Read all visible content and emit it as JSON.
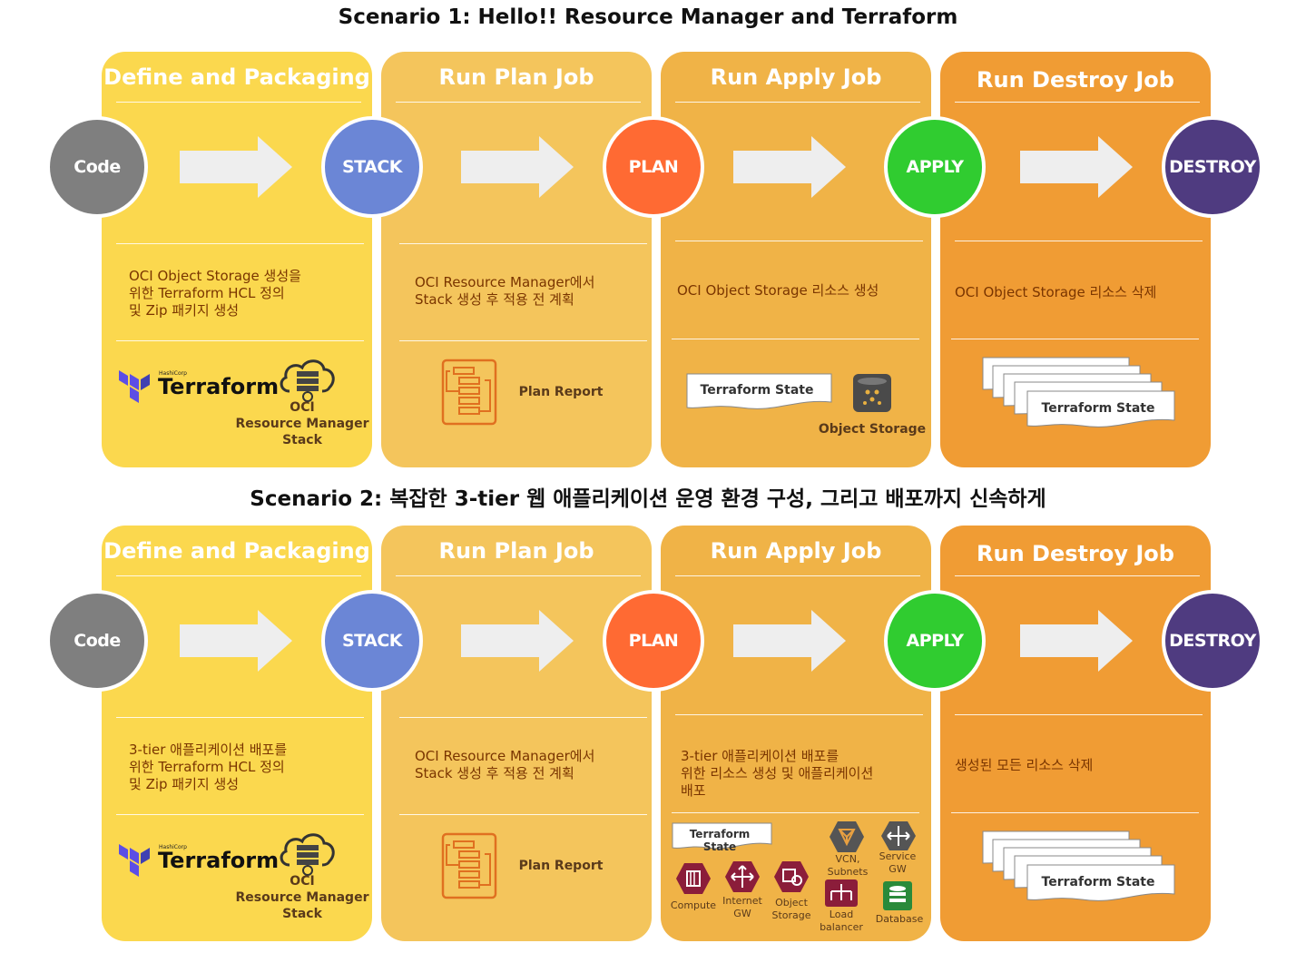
{
  "colors": {
    "define": "#fbd84e",
    "plan": "#f4c55c",
    "apply": "#f0b347",
    "destroy": "#f09c34",
    "code": "#7f7f7f",
    "stack": "#6b86d6",
    "plan_circle": "#ff6a33",
    "apply_circle": "#30cc30",
    "destroy_circle": "#4f3b80"
  },
  "scenarios": [
    {
      "title": "Scenario 1: Hello!! Resource Manager and Terraform",
      "stages": [
        "Define and Packaging",
        "Run Plan Job",
        "Run Apply Job",
        "Run Destroy Job"
      ],
      "nodes": [
        "Code",
        "STACK",
        "PLAN",
        "APPLY",
        "DESTROY"
      ],
      "desc": [
        "OCI Object Storage 생성을\n위한 Terraform HCL 정의\n및 Zip 패키지 생성",
        "OCI Resource Manager에서\nStack 생성 후 적용 전 계획",
        "OCI Object Storage 리소스 생성",
        "OCI Object Storage 리소스 삭제"
      ],
      "terraform_logo": "Terraform",
      "hashicorp": "HashiCorp",
      "oci_stack_label": "OCI\nResource Manager\nStack",
      "plan_report": "Plan Report",
      "tf_state": "Terraform State",
      "object_storage": "Object Storage",
      "destroy_state": "Terraform State"
    },
    {
      "title": "Scenario 2: 복잡한 3-tier 웹 애플리케이션 운영 환경 구성, 그리고 배포까지 신속하게",
      "stages": [
        "Define and Packaging",
        "Run Plan Job",
        "Run Apply Job",
        "Run Destroy Job"
      ],
      "nodes": [
        "Code",
        "STACK",
        "PLAN",
        "APPLY",
        "DESTROY"
      ],
      "desc": [
        "3-tier 애플리케이션 배포를\n위한 Terraform HCL 정의\n및 Zip 패키지 생성",
        "OCI Resource Manager에서\nStack 생성 후 적용 전 계획",
        "3-tier 애플리케이션 배포를\n위한 리소스 생성 및 애플리케이션\n배포",
        "생성된 모든 리소스 삭제"
      ],
      "terraform_logo": "Terraform",
      "hashicorp": "HashiCorp",
      "oci_stack_label": "OCI\nResource Manager\nStack",
      "plan_report": "Plan Report",
      "tf_state": "Terraform State",
      "resources": {
        "compute": "Compute",
        "internet_gw": "Internet\nGW",
        "object_storage": "Object\nStorage",
        "vcn": "VCN,\nSubnets",
        "service_gw": "Service\nGW",
        "load_balancer": "Load\nbalancer",
        "database": "Database"
      },
      "destroy_state": "Terraform State"
    }
  ]
}
